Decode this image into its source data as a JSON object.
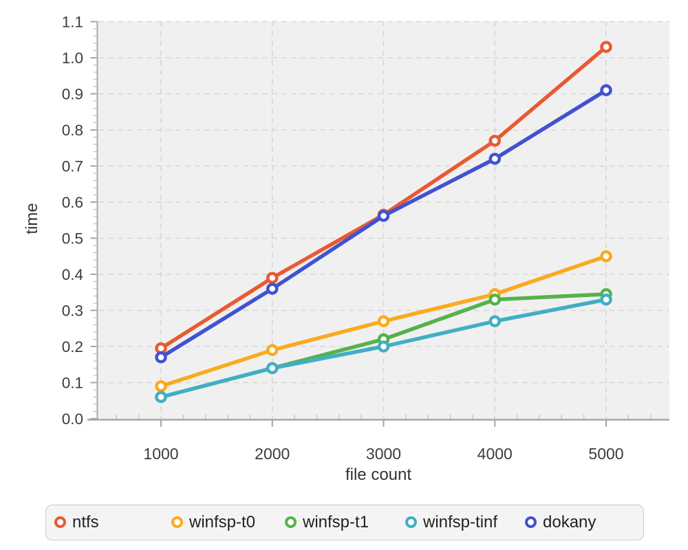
{
  "chart_data": {
    "type": "line",
    "title": "",
    "xlabel": "file count",
    "ylabel": "time",
    "x": [
      1000,
      2000,
      3000,
      4000,
      5000
    ],
    "x_ticks": [
      "1000",
      "2000",
      "3000",
      "4000",
      "5000"
    ],
    "y_ticks": [
      "0.0",
      "0.1",
      "0.2",
      "0.3",
      "0.4",
      "0.5",
      "0.6",
      "0.7",
      "0.8",
      "0.9",
      "1.0",
      "1.1"
    ],
    "ylim": [
      0.0,
      1.1
    ],
    "y_tick_step": 0.1,
    "y_minor_step": 0.02,
    "x_minor_step": 200,
    "grid": "dashed",
    "legend_position": "bottom",
    "marker": "open-circle",
    "series": [
      {
        "name": "ntfs",
        "color": "#e95a32",
        "values": [
          0.195,
          0.39,
          0.565,
          0.77,
          1.03
        ]
      },
      {
        "name": "winfsp-t0",
        "color": "#faaa1e",
        "values": [
          0.09,
          0.19,
          0.27,
          0.345,
          0.45
        ]
      },
      {
        "name": "winfsp-t1",
        "color": "#55b24b",
        "values": [
          0.06,
          0.14,
          0.22,
          0.33,
          0.345
        ]
      },
      {
        "name": "winfsp-tinf",
        "color": "#41aec5",
        "values": [
          0.06,
          0.14,
          0.2,
          0.27,
          0.33
        ]
      },
      {
        "name": "dokany",
        "color": "#4152d0",
        "values": [
          0.17,
          0.36,
          0.562,
          0.72,
          0.91
        ]
      }
    ],
    "colors": {
      "plot_background": "#f0f0f1",
      "gridline": "#d7d7d7",
      "axis": "#a6a6a6",
      "minor_tick": "#bdbdbd",
      "tick_label": "#3c3c3c"
    }
  }
}
